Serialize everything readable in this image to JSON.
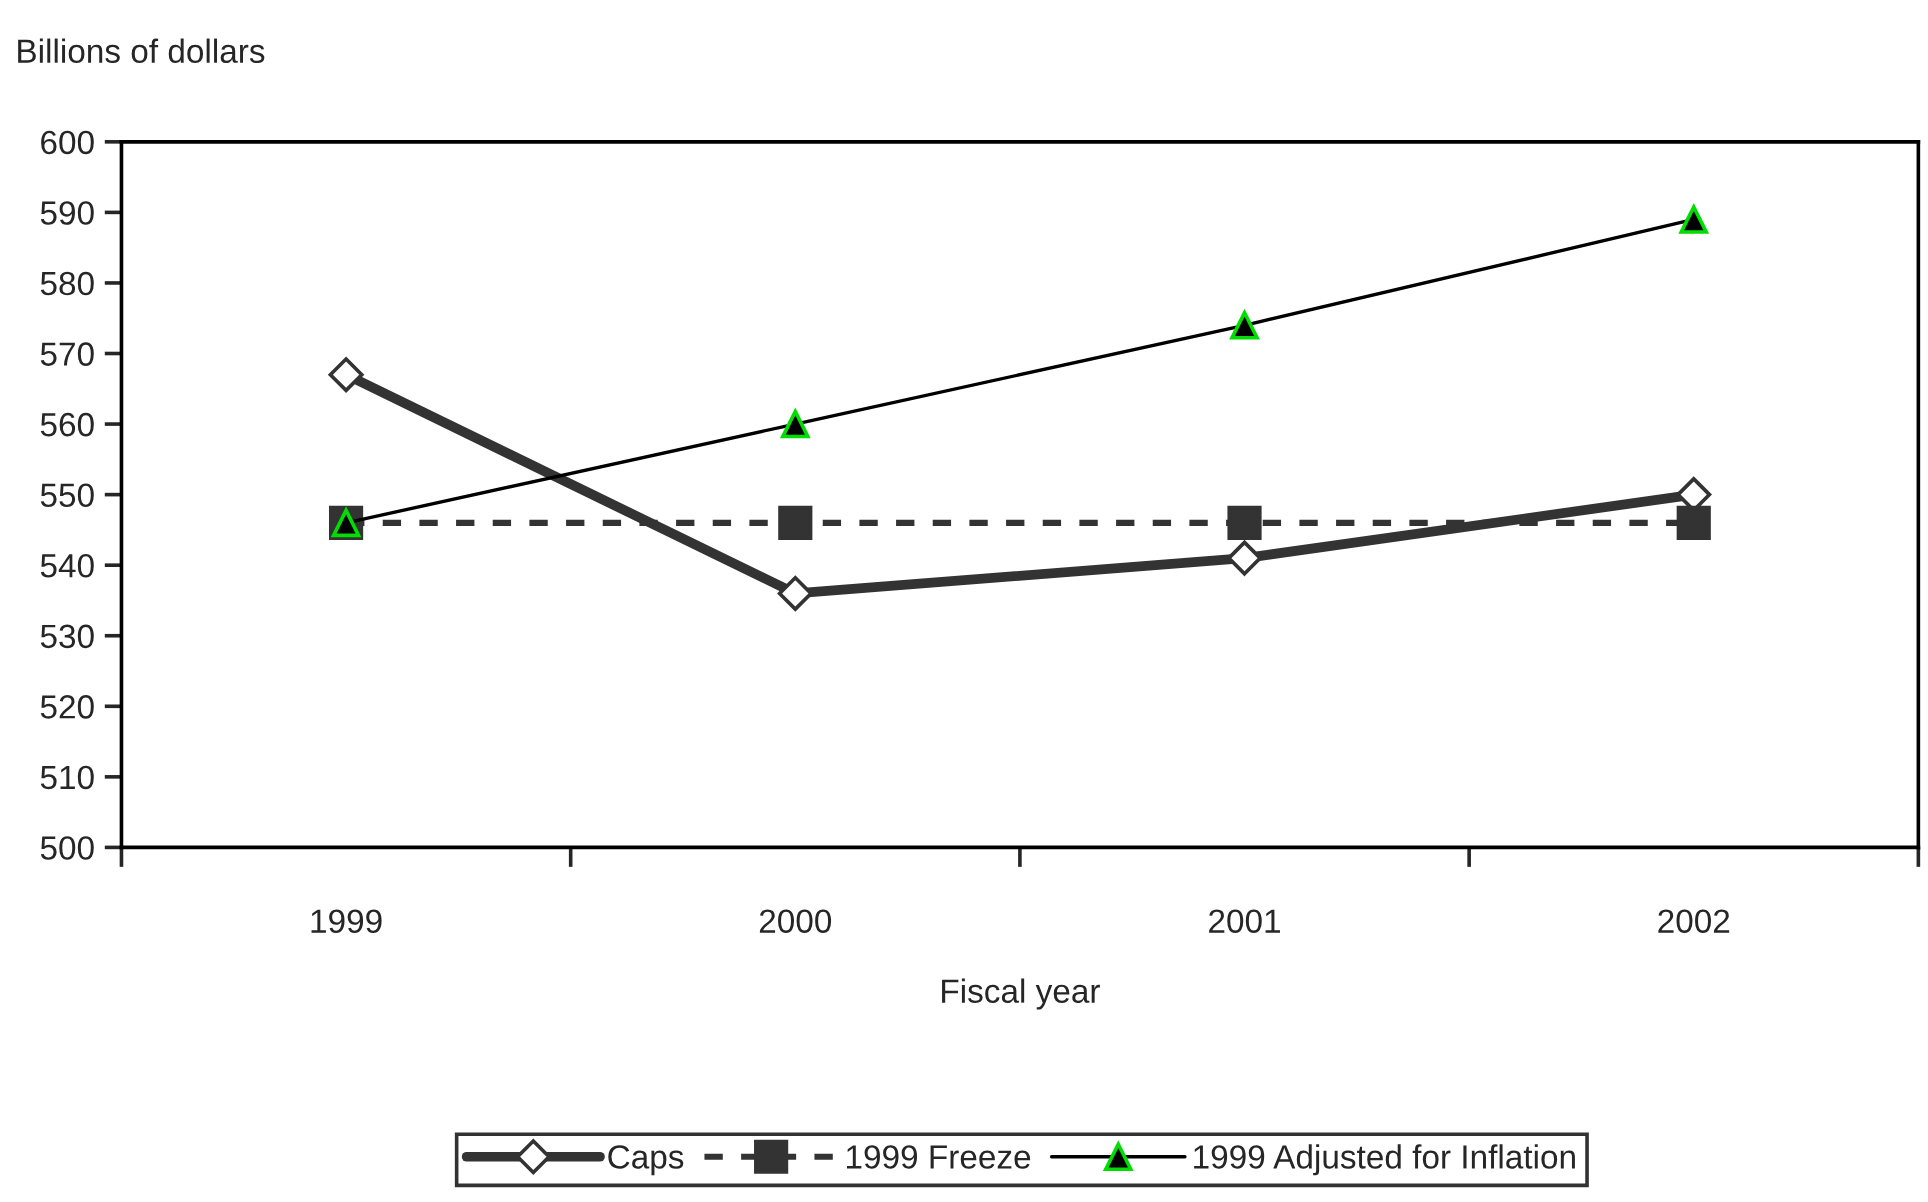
{
  "chart_data": {
    "type": "line",
    "ylabel": "Billions of dollars",
    "xlabel": "Fiscal year",
    "categories": [
      "1999",
      "2000",
      "2001",
      "2002"
    ],
    "series": [
      {
        "name": "Caps",
        "color": "#333333",
        "values": [
          567,
          536,
          541,
          550
        ],
        "marker": "diamond",
        "line_style": "solid"
      },
      {
        "name": "1999 Freeze",
        "color": "#333333",
        "values": [
          546,
          546,
          546,
          546
        ],
        "marker": "square",
        "line_style": "dashed"
      },
      {
        "name": "1999 Adjusted for Inflation",
        "color": "#000000",
        "values": [
          546,
          560,
          574,
          589
        ],
        "marker": "triangle",
        "line_style": "solid"
      }
    ],
    "ylim": [
      500,
      600
    ],
    "yticks": [
      500,
      510,
      520,
      530,
      540,
      550,
      560,
      570,
      580,
      590,
      600
    ],
    "grid": false,
    "legend": "bottom"
  }
}
